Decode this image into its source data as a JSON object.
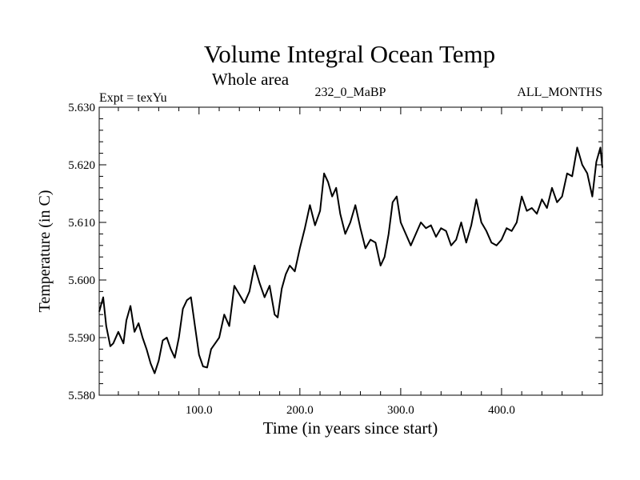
{
  "chart_data": {
    "type": "line",
    "title": "Volume Integral Ocean Temp",
    "subtitle": "Whole area",
    "annotations": {
      "experiment": "Expt = texYu",
      "period": "232_0_MaBP",
      "months": "ALL_MONTHS"
    },
    "xlabel": "Time (in years since start)",
    "ylabel": "Temperature (in C)",
    "xlim": [
      1,
      500
    ],
    "ylim": [
      5.58,
      5.63
    ],
    "xticks": [
      100,
      200,
      300,
      400
    ],
    "xtick_labels": [
      "100.0",
      "200.0",
      "300.0",
      "400.0"
    ],
    "yticks": [
      5.58,
      5.59,
      5.6,
      5.61,
      5.62,
      5.63
    ],
    "ytick_labels": [
      "5.580",
      "5.590",
      "5.600",
      "5.610",
      "5.620",
      "5.630"
    ],
    "grid": false,
    "line_color": "#000000",
    "series": [
      {
        "x": [
          1,
          5,
          8,
          12,
          15,
          20,
          25,
          28,
          32,
          36,
          40,
          44,
          48,
          52,
          56,
          60,
          64,
          68,
          72,
          76,
          80,
          84,
          88,
          92,
          96,
          100,
          104,
          108,
          112,
          116,
          120,
          125,
          130,
          135,
          140,
          145,
          150,
          155,
          160,
          165,
          170,
          175,
          178,
          182,
          186,
          190,
          195,
          200,
          205,
          210,
          215,
          220,
          224,
          228,
          232,
          236,
          240,
          245,
          250,
          255,
          260,
          265,
          270,
          275,
          280,
          284,
          288,
          292,
          296,
          300,
          305,
          310,
          315,
          320,
          325,
          330,
          335,
          340,
          345,
          350,
          355,
          360,
          365,
          370,
          375,
          380,
          385,
          390,
          395,
          400,
          405,
          410,
          415,
          420,
          425,
          430,
          435,
          440,
          445,
          450,
          455,
          460,
          465,
          470,
          475,
          480,
          485,
          490,
          494,
          498,
          500
        ],
        "y": [
          5.5945,
          5.597,
          5.592,
          5.5885,
          5.589,
          5.591,
          5.589,
          5.593,
          5.5955,
          5.591,
          5.5925,
          5.59,
          5.588,
          5.5855,
          5.5838,
          5.586,
          5.5895,
          5.59,
          5.588,
          5.5865,
          5.59,
          5.595,
          5.5965,
          5.597,
          5.592,
          5.587,
          5.585,
          5.5848,
          5.588,
          5.589,
          5.59,
          5.594,
          5.592,
          5.599,
          5.5975,
          5.596,
          5.598,
          5.6025,
          5.5995,
          5.597,
          5.599,
          5.594,
          5.5935,
          5.5985,
          5.601,
          5.6025,
          5.6015,
          5.6055,
          5.609,
          5.613,
          5.6095,
          5.612,
          5.6185,
          5.617,
          5.6145,
          5.616,
          5.6115,
          5.608,
          5.61,
          5.613,
          5.609,
          5.6055,
          5.607,
          5.6065,
          5.6025,
          5.604,
          5.608,
          5.6135,
          5.6145,
          5.61,
          5.608,
          5.606,
          5.608,
          5.61,
          5.609,
          5.6095,
          5.6075,
          5.609,
          5.6085,
          5.606,
          5.607,
          5.61,
          5.6065,
          5.6095,
          5.614,
          5.61,
          5.6085,
          5.6065,
          5.606,
          5.607,
          5.609,
          5.6085,
          5.61,
          5.6145,
          5.612,
          5.6125,
          5.6115,
          5.614,
          5.6125,
          5.616,
          5.6135,
          5.6145,
          5.6185,
          5.618,
          5.623,
          5.62,
          5.6185,
          5.6145,
          5.6205,
          5.623,
          5.6195
        ]
      }
    ]
  }
}
